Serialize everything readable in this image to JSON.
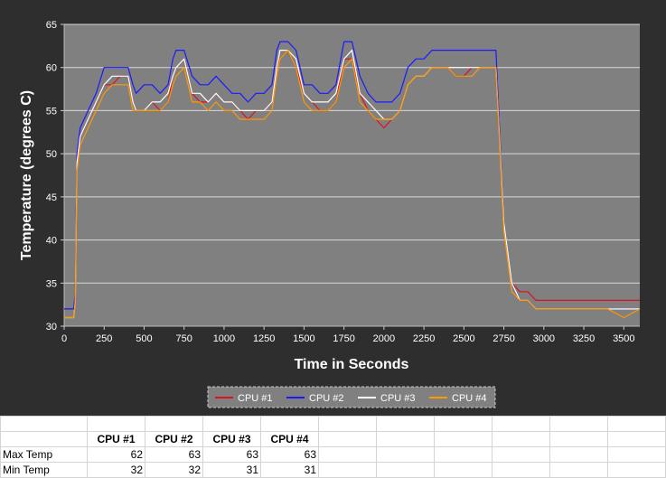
{
  "chart_data": {
    "type": "line",
    "xlabel": "Time in Seconds",
    "ylabel": "Temperature (degrees C)",
    "xlim": [
      0,
      3600
    ],
    "ylim": [
      30,
      65
    ],
    "x_ticks": [
      0,
      250,
      500,
      750,
      1000,
      1250,
      1500,
      1750,
      2000,
      2250,
      2500,
      2750,
      3000,
      3250,
      3500
    ],
    "y_ticks": [
      30,
      35,
      40,
      45,
      50,
      55,
      60,
      65
    ],
    "grid": "horizontal",
    "legend_position": "bottom",
    "background": "#808080",
    "series": [
      {
        "name": "CPU #1",
        "color": "#e0101f",
        "x": [
          0,
          60,
          70,
          80,
          100,
          150,
          200,
          250,
          300,
          350,
          400,
          430,
          450,
          500,
          550,
          600,
          650,
          680,
          700,
          750,
          800,
          850,
          900,
          950,
          1000,
          1050,
          1100,
          1150,
          1200,
          1250,
          1300,
          1330,
          1350,
          1400,
          1450,
          1500,
          1550,
          1600,
          1650,
          1700,
          1750,
          1800,
          1850,
          1900,
          1950,
          2000,
          2050,
          2100,
          2150,
          2200,
          2250,
          2300,
          2350,
          2400,
          2450,
          2500,
          2550,
          2600,
          2650,
          2680,
          2700,
          2750,
          2800,
          2850,
          2900,
          2950,
          3000,
          3100,
          3200,
          3300,
          3400,
          3500,
          3600
        ],
        "y": [
          32,
          32,
          33,
          49,
          52,
          54,
          56,
          58,
          58,
          59,
          59,
          56,
          55,
          55,
          56,
          55,
          56,
          59,
          60,
          61,
          57,
          56,
          56,
          57,
          56,
          56,
          55,
          54,
          55,
          55,
          56,
          60,
          61,
          62,
          60,
          57,
          56,
          55,
          55,
          56,
          61,
          61,
          57,
          55,
          54,
          53,
          54,
          55,
          58,
          59,
          59,
          60,
          60,
          60,
          59,
          59,
          60,
          60,
          60,
          60,
          60,
          42,
          35,
          34,
          34,
          33,
          33,
          33,
          33,
          33,
          33,
          33,
          33
        ]
      },
      {
        "name": "CPU #2",
        "color": "#1a1aff",
        "x": [
          0,
          60,
          70,
          80,
          100,
          150,
          200,
          250,
          300,
          350,
          400,
          430,
          450,
          500,
          550,
          600,
          650,
          680,
          700,
          750,
          800,
          850,
          900,
          950,
          1000,
          1050,
          1100,
          1150,
          1200,
          1250,
          1300,
          1330,
          1350,
          1400,
          1450,
          1500,
          1550,
          1600,
          1650,
          1700,
          1750,
          1800,
          1850,
          1900,
          1950,
          2000,
          2050,
          2100,
          2150,
          2200,
          2250,
          2300,
          2350,
          2400,
          2450,
          2500,
          2550,
          2600,
          2650,
          2680,
          2700,
          2750,
          2800,
          2850,
          2900,
          2950,
          3000,
          3100,
          3200,
          3300,
          3400,
          3500,
          3600
        ],
        "y": [
          32,
          32,
          34,
          50,
          53,
          55,
          57,
          60,
          60,
          60,
          60,
          58,
          57,
          58,
          58,
          57,
          58,
          61,
          62,
          62,
          59,
          58,
          58,
          59,
          58,
          57,
          57,
          56,
          57,
          57,
          58,
          62,
          63,
          63,
          62,
          58,
          58,
          57,
          57,
          58,
          63,
          63,
          59,
          57,
          56,
          56,
          56,
          57,
          60,
          61,
          61,
          62,
          62,
          62,
          62,
          62,
          62,
          62,
          62,
          62,
          62,
          42,
          35,
          33,
          33,
          32,
          32,
          32,
          32,
          32,
          32,
          32,
          32
        ]
      },
      {
        "name": "CPU #3",
        "color": "#ffffff",
        "x": [
          0,
          60,
          70,
          80,
          100,
          150,
          200,
          250,
          300,
          350,
          400,
          430,
          450,
          500,
          550,
          600,
          650,
          680,
          700,
          750,
          800,
          850,
          900,
          950,
          1000,
          1050,
          1100,
          1150,
          1200,
          1250,
          1300,
          1330,
          1350,
          1400,
          1450,
          1500,
          1550,
          1600,
          1650,
          1700,
          1750,
          1800,
          1850,
          1900,
          1950,
          2000,
          2050,
          2100,
          2150,
          2200,
          2250,
          2300,
          2350,
          2400,
          2450,
          2500,
          2550,
          2600,
          2650,
          2680,
          2700,
          2750,
          2800,
          2850,
          2900,
          2950,
          3000,
          3100,
          3200,
          3300,
          3400,
          3500,
          3600
        ],
        "y": [
          31,
          31,
          33,
          49,
          52,
          54,
          56,
          58,
          59,
          59,
          59,
          56,
          55,
          55,
          56,
          56,
          57,
          59,
          60,
          61,
          57,
          57,
          56,
          57,
          56,
          56,
          55,
          55,
          55,
          55,
          56,
          60,
          62,
          62,
          61,
          57,
          56,
          56,
          56,
          57,
          61,
          62,
          57,
          56,
          55,
          54,
          54,
          55,
          58,
          59,
          59,
          60,
          60,
          60,
          60,
          60,
          60,
          60,
          60,
          60,
          60,
          42,
          35,
          33,
          33,
          32,
          32,
          32,
          32,
          32,
          32,
          32,
          32
        ]
      },
      {
        "name": "CPU #4",
        "color": "#ff9900",
        "x": [
          0,
          60,
          70,
          80,
          100,
          150,
          200,
          250,
          300,
          350,
          400,
          430,
          450,
          500,
          550,
          600,
          650,
          680,
          700,
          750,
          800,
          850,
          900,
          950,
          1000,
          1050,
          1100,
          1150,
          1200,
          1250,
          1300,
          1330,
          1350,
          1400,
          1450,
          1500,
          1550,
          1600,
          1650,
          1700,
          1750,
          1800,
          1850,
          1900,
          1950,
          2000,
          2050,
          2100,
          2150,
          2200,
          2250,
          2300,
          2350,
          2400,
          2450,
          2500,
          2550,
          2600,
          2650,
          2680,
          2700,
          2750,
          2800,
          2850,
          2900,
          2950,
          3000,
          3100,
          3200,
          3300,
          3400,
          3500,
          3600
        ],
        "y": [
          31,
          31,
          33,
          48,
          51,
          53,
          55,
          57,
          58,
          58,
          58,
          55,
          55,
          55,
          55,
          55,
          56,
          58,
          59,
          60,
          56,
          56,
          55,
          56,
          55,
          55,
          54,
          54,
          54,
          54,
          55,
          59,
          61,
          62,
          60,
          56,
          55,
          55,
          55,
          56,
          60,
          61,
          56,
          55,
          54,
          54,
          54,
          55,
          58,
          59,
          59,
          60,
          60,
          60,
          59,
          59,
          59,
          60,
          60,
          60,
          60,
          41,
          34,
          33,
          33,
          32,
          32,
          32,
          32,
          32,
          32,
          31,
          32
        ]
      }
    ]
  },
  "table": {
    "headers": [
      "",
      "CPU #1",
      "CPU #2",
      "CPU #3",
      "CPU #4"
    ],
    "rows": [
      {
        "label": "Max Temp",
        "values": [
          "62",
          "63",
          "63",
          "63"
        ]
      },
      {
        "label": "Min Temp",
        "values": [
          "32",
          "32",
          "31",
          "31"
        ]
      }
    ]
  }
}
